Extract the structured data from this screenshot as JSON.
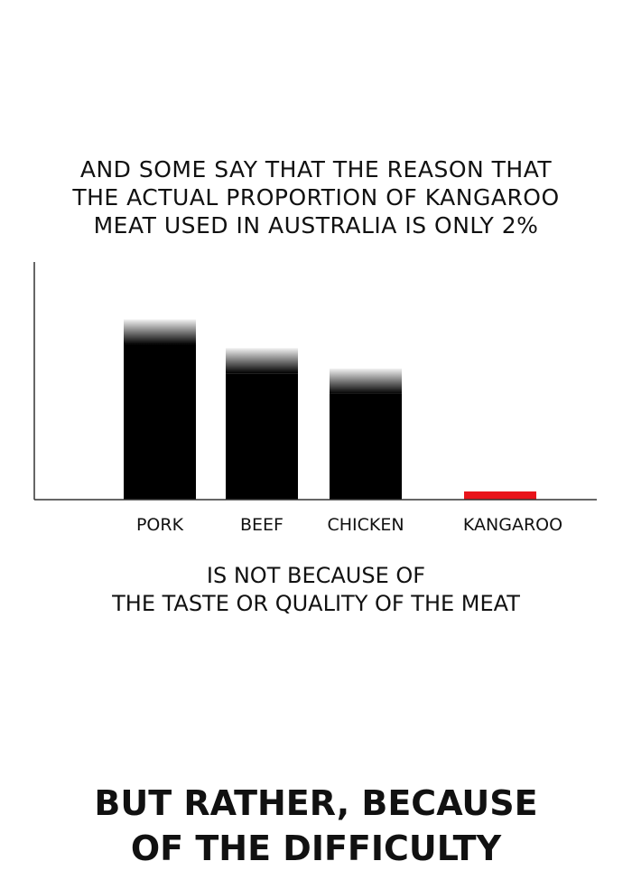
{
  "captions": {
    "top": [
      "And some say that the reason that",
      "the actual proportion of kangaroo",
      "meat used in Australia is only 2%"
    ],
    "middle": [
      "is not because of",
      "the taste or quality of the meat"
    ],
    "bottom": [
      "But rather, because",
      "of the difficulty"
    ]
  },
  "chart_data": {
    "type": "bar",
    "title": "",
    "xlabel": "",
    "ylabel": "",
    "categories": [
      "PORK",
      "BEEF",
      "CHICKEN",
      "KANGAROO"
    ],
    "values": [
      44,
      37,
      32,
      2
    ],
    "ylim": [
      0,
      58
    ],
    "grid": false,
    "y_tick_labels": false,
    "colors": [
      "#000000",
      "#000000",
      "#000000",
      "#e8141b"
    ]
  }
}
